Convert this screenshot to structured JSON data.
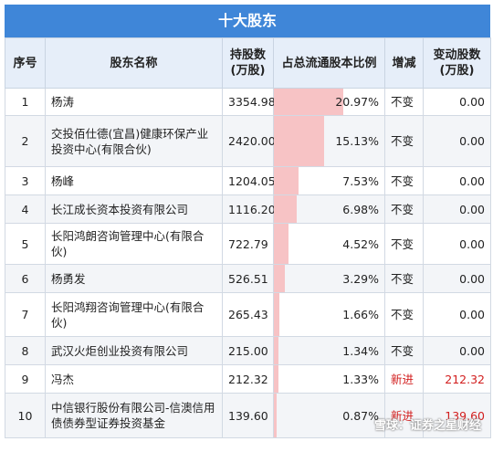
{
  "title": "十大股东",
  "headers": {
    "index": "序号",
    "name": "股东名称",
    "holding": [
      "持股数",
      "(万股)"
    ],
    "ratio": "占总流通股本比例",
    "change": "增减",
    "change_shares": [
      "变动股数",
      "(万股)"
    ]
  },
  "rows": [
    {
      "index": "1",
      "name": "杨涛",
      "holding": "3354.98",
      "ratio": "20.97%",
      "ratio_value": 20.97,
      "change": "不变",
      "change_shares": "0.00"
    },
    {
      "index": "2",
      "name": "交投佰仕德(宜昌)健康环保产业投资中心(有限合伙)",
      "holding": "2420.00",
      "ratio": "15.13%",
      "ratio_value": 15.13,
      "change": "不变",
      "change_shares": "0.00"
    },
    {
      "index": "3",
      "name": "杨峰",
      "holding": "1204.05",
      "ratio": "7.53%",
      "ratio_value": 7.53,
      "change": "不变",
      "change_shares": "0.00"
    },
    {
      "index": "4",
      "name": "长江成长资本投资有限公司",
      "holding": "1116.20",
      "ratio": "6.98%",
      "ratio_value": 6.98,
      "change": "不变",
      "change_shares": "0.00"
    },
    {
      "index": "5",
      "name": "长阳鸿朗咨询管理中心(有限合伙)",
      "holding": "722.79",
      "ratio": "4.52%",
      "ratio_value": 4.52,
      "change": "不变",
      "change_shares": "0.00"
    },
    {
      "index": "6",
      "name": "杨勇发",
      "holding": "526.51",
      "ratio": "3.29%",
      "ratio_value": 3.29,
      "change": "不变",
      "change_shares": "0.00"
    },
    {
      "index": "7",
      "name": "长阳鸿翔咨询管理中心(有限合伙)",
      "holding": "265.43",
      "ratio": "1.66%",
      "ratio_value": 1.66,
      "change": "不变",
      "change_shares": "0.00"
    },
    {
      "index": "8",
      "name": "武汉火炬创业投资有限公司",
      "holding": "215.00",
      "ratio": "1.34%",
      "ratio_value": 1.34,
      "change": "不变",
      "change_shares": "0.00"
    },
    {
      "index": "9",
      "name": "冯杰",
      "holding": "212.32",
      "ratio": "1.33%",
      "ratio_value": 1.33,
      "change": "新进",
      "change_shares": "212.32",
      "is_new": true
    },
    {
      "index": "10",
      "name": "中信银行股份有限公司-信澳信用债债券型证券投资基金",
      "holding": "139.60",
      "ratio": "0.87%",
      "ratio_value": 0.87,
      "change": "新进",
      "change_shares": "139.60",
      "is_new": true
    }
  ],
  "watermark": "雪球：证券之星财经",
  "colors": {
    "title_bg": "#3f86d8",
    "header_bg": "#e6eef9",
    "bar": "#f7c3c5",
    "new_text": "#d21e1e"
  }
}
